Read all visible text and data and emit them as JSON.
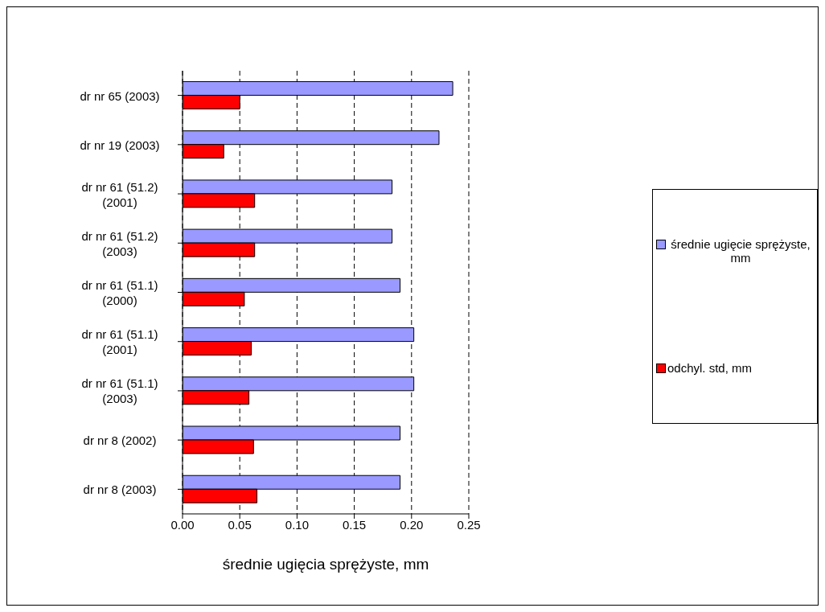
{
  "chart_data": {
    "type": "bar",
    "orientation": "horizontal",
    "xlabel": "średnie ugięcia sprężyste, mm",
    "categories": [
      "dr nr 65 (2003)",
      "dr nr 19 (2003)",
      "dr nr 61 (51.2) (2001)",
      "dr nr 61 (51.2) (2003)",
      "dr nr 61 (51.1) (2000)",
      "dr nr 61 (51.1) (2001)",
      "dr nr 61 (51.1) (2003)",
      "dr nr 8 (2002)",
      "dr nr 8 (2003)"
    ],
    "series": [
      {
        "name": "średnie ugięcie sprężyste, mm",
        "color": "#9999ff",
        "values": [
          0.236,
          0.224,
          0.183,
          0.183,
          0.19,
          0.202,
          0.202,
          0.19,
          0.19
        ]
      },
      {
        "name": "odchyl. std, mm",
        "color": "#ff0000",
        "values": [
          0.05,
          0.036,
          0.063,
          0.063,
          0.054,
          0.06,
          0.058,
          0.062,
          0.065
        ]
      }
    ],
    "xlim": [
      0,
      0.25
    ],
    "xticks": [
      {
        "value": 0,
        "label": "0.00"
      },
      {
        "value": 0.05,
        "label": "0.05"
      },
      {
        "value": 0.1,
        "label": "0.10"
      },
      {
        "value": 0.15,
        "label": "0.15"
      },
      {
        "value": 0.2,
        "label": "0.20"
      },
      {
        "value": 0.25,
        "label": "0.25"
      }
    ],
    "grid": "x",
    "legend": "right"
  }
}
